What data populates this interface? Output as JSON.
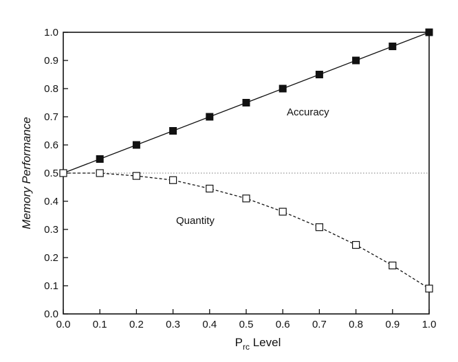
{
  "chart_data": {
    "type": "line",
    "title": "",
    "xlabel": "P",
    "xlabel_subscript": "rc",
    "xlabel_suffix": " Level",
    "ylabel": "Memory Performance",
    "xlim": [
      0.0,
      1.0
    ],
    "ylim": [
      0.0,
      1.0
    ],
    "x_ticks": [
      "0.0",
      "0.1",
      "0.2",
      "0.3",
      "0.4",
      "0.5",
      "0.6",
      "0.7",
      "0.8",
      "0.9",
      "1.0"
    ],
    "y_ticks": [
      "0.0",
      "0.1",
      "0.2",
      "0.3",
      "0.4",
      "0.5",
      "0.6",
      "0.7",
      "0.8",
      "0.9",
      "1.0"
    ],
    "x": [
      0.0,
      0.1,
      0.2,
      0.3,
      0.4,
      0.5,
      0.6,
      0.7,
      0.8,
      0.9,
      1.0
    ],
    "series": [
      {
        "name": "Accuracy",
        "marker": "filled-square",
        "line": "solid",
        "values": [
          0.5,
          0.55,
          0.6,
          0.65,
          0.7,
          0.75,
          0.8,
          0.85,
          0.9,
          0.95,
          1.0
        ]
      },
      {
        "name": "Quantity",
        "marker": "open-square",
        "line": "dashed",
        "values": [
          0.5,
          0.5,
          0.49,
          0.475,
          0.445,
          0.41,
          0.363,
          0.308,
          0.245,
          0.172,
          0.09
        ]
      }
    ],
    "reference_line": {
      "y": 0.5,
      "style": "dotted"
    }
  }
}
